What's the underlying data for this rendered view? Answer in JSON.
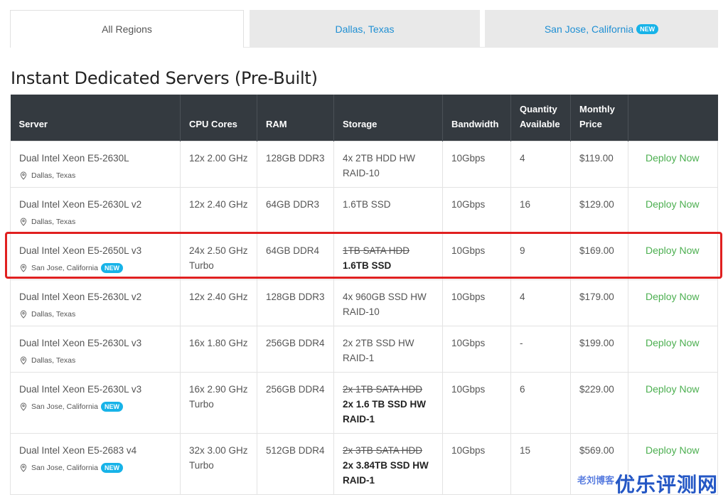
{
  "tabs": [
    {
      "label": "All Regions",
      "active": true
    },
    {
      "label": "Dallas, Texas",
      "active": false
    },
    {
      "label": "San Jose, California",
      "badge": "NEW",
      "active": false
    }
  ],
  "page_title": "Instant Dedicated Servers (Pre-Built)",
  "table": {
    "headers": [
      "Server",
      "CPU Cores",
      "RAM",
      "Storage",
      "Bandwidth",
      "Quantity Available",
      "Monthly Price",
      ""
    ],
    "rows": [
      {
        "server": "Dual Intel Xeon E5-2630L",
        "location": "Dallas, Texas",
        "badge": "",
        "cpu": "12x 2.00 GHz",
        "ram": "128GB DDR3",
        "storage_old": "",
        "storage": "4x 2TB HDD HW RAID-10",
        "bandwidth": "10Gbps",
        "qty": "4",
        "price": "$119.00",
        "action": "Deploy Now"
      },
      {
        "server": "Dual Intel Xeon E5-2630L v2",
        "location": "Dallas, Texas",
        "badge": "",
        "cpu": "12x 2.40 GHz",
        "ram": "64GB DDR3",
        "storage_old": "",
        "storage": "1.6TB SSD",
        "bandwidth": "10Gbps",
        "qty": "16",
        "price": "$129.00",
        "action": "Deploy Now"
      },
      {
        "server": "Dual Intel Xeon E5-2650L v3",
        "location": "San Jose, California",
        "badge": "NEW",
        "cpu": "24x 2.50 GHz Turbo",
        "ram": "64GB DDR4",
        "storage_old": "1TB SATA HDD",
        "storage": "1.6TB SSD",
        "bandwidth": "10Gbps",
        "qty": "9",
        "price": "$169.00",
        "action": "Deploy Now"
      },
      {
        "server": "Dual Intel Xeon E5-2630L v2",
        "location": "Dallas, Texas",
        "badge": "",
        "cpu": "12x 2.40 GHz",
        "ram": "128GB DDR3",
        "storage_old": "",
        "storage": "4x 960GB SSD HW RAID-10",
        "bandwidth": "10Gbps",
        "qty": "4",
        "price": "$179.00",
        "action": "Deploy Now"
      },
      {
        "server": "Dual Intel Xeon E5-2630L v3",
        "location": "Dallas, Texas",
        "badge": "",
        "cpu": "16x 1.80 GHz",
        "ram": "256GB DDR4",
        "storage_old": "",
        "storage": "2x 2TB SSD HW RAID-1",
        "bandwidth": "10Gbps",
        "qty": "-",
        "price": "$199.00",
        "action": "Deploy Now"
      },
      {
        "server": "Dual Intel Xeon E5-2630L v3",
        "location": "San Jose, California",
        "badge": "NEW",
        "cpu": "16x 2.90 GHz Turbo",
        "ram": "256GB DDR4",
        "storage_old": "2x 1TB SATA HDD",
        "storage": "2x 1.6 TB SSD HW RAID-1",
        "bandwidth": "10Gbps",
        "qty": "6",
        "price": "$229.00",
        "action": "Deploy Now"
      },
      {
        "server": "Dual Intel Xeon E5-2683 v4",
        "location": "San Jose, California",
        "badge": "NEW",
        "cpu": "32x 3.00 GHz Turbo",
        "ram": "512GB DDR4",
        "storage_old": "2x 3TB SATA HDD",
        "storage": "2x 3.84TB SSD HW RAID-1",
        "bandwidth": "10Gbps",
        "qty": "15",
        "price": "$569.00",
        "action": "Deploy Now"
      }
    ]
  },
  "watermark": {
    "main": "优乐评测网",
    "small": "老刘博客"
  },
  "colors": {
    "header_bg": "#343a40",
    "link": "#1f8fd3",
    "deploy": "#4caf50",
    "badge": "#17b3e8",
    "highlight": "#e02020"
  }
}
